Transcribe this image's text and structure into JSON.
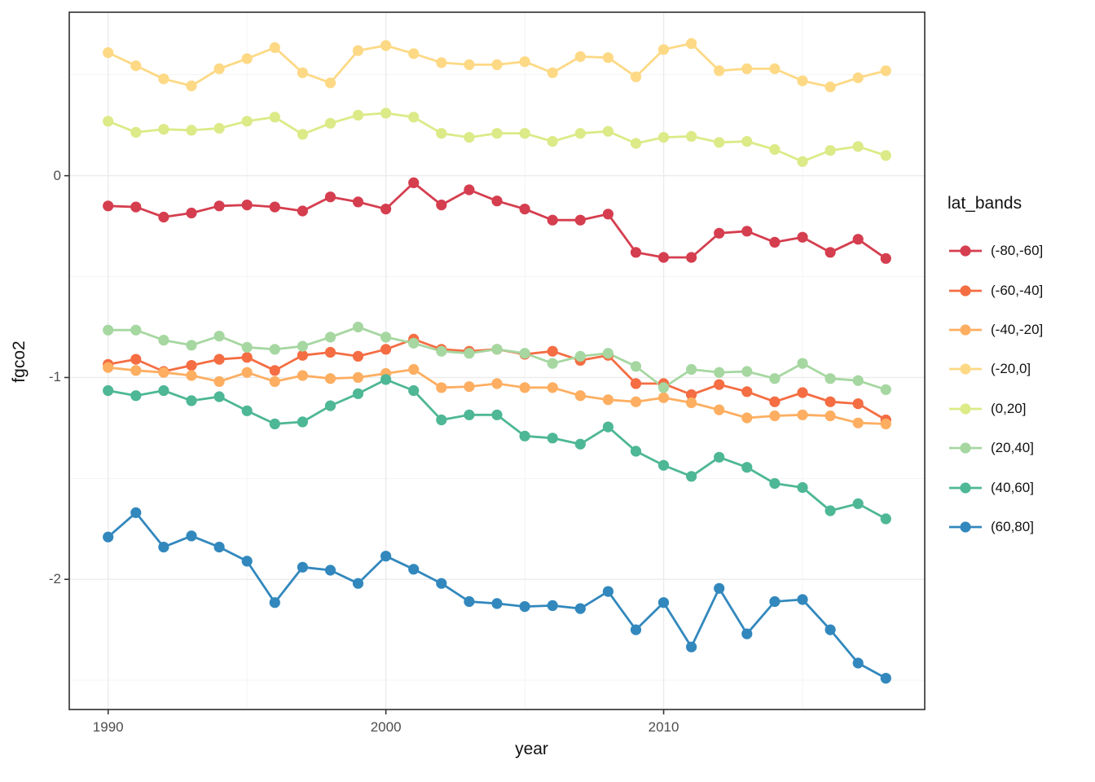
{
  "chart_data": {
    "type": "line",
    "title": "",
    "xlabel": "year",
    "ylabel": "fgco2",
    "legend_title": "lat_bands",
    "grid": true,
    "legend_position": "right",
    "xlim": [
      1988.6,
      2019.4
    ],
    "ylim": [
      -2.645,
      0.81
    ],
    "x_major_ticks": [
      {
        "value": 1990,
        "label": "1990"
      },
      {
        "value": 2000,
        "label": "2000"
      },
      {
        "value": 2010,
        "label": "2010"
      }
    ],
    "x_minor_ticks": [
      1995,
      2005,
      2015
    ],
    "y_major_ticks": [
      {
        "value": 0,
        "label": "0"
      },
      {
        "value": -1,
        "label": "-1"
      },
      {
        "value": -2,
        "label": "-2"
      }
    ],
    "y_minor_ticks": [
      0.5,
      -0.5,
      -1.5,
      -2.5
    ],
    "x": [
      1990,
      1991,
      1992,
      1993,
      1994,
      1995,
      1996,
      1997,
      1998,
      1999,
      2000,
      2001,
      2002,
      2003,
      2004,
      2005,
      2006,
      2007,
      2008,
      2009,
      2010,
      2011,
      2012,
      2013,
      2014,
      2015,
      2016,
      2017,
      2018
    ],
    "series": [
      {
        "name": "(-80,-60]",
        "color": "#d53e4f",
        "values": [
          -0.15,
          -0.155,
          -0.205,
          -0.185,
          -0.15,
          -0.145,
          -0.155,
          -0.175,
          -0.105,
          -0.13,
          -0.165,
          -0.035,
          -0.145,
          -0.07,
          -0.125,
          -0.165,
          -0.22,
          -0.22,
          -0.19,
          -0.38,
          -0.405,
          -0.405,
          -0.285,
          -0.275,
          -0.33,
          -0.305,
          -0.38,
          -0.315,
          -0.41
        ]
      },
      {
        "name": "(-60,-40]",
        "color": "#f46d43",
        "values": [
          -0.935,
          -0.91,
          -0.97,
          -0.94,
          -0.91,
          -0.9,
          -0.965,
          -0.89,
          -0.875,
          -0.895,
          -0.86,
          -0.81,
          -0.86,
          -0.87,
          -0.86,
          -0.885,
          -0.87,
          -0.915,
          -0.89,
          -1.03,
          -1.03,
          -1.085,
          -1.035,
          -1.07,
          -1.12,
          -1.075,
          -1.12,
          -1.13,
          -1.21
        ]
      },
      {
        "name": "(-40,-20]",
        "color": "#fdae61",
        "values": [
          -0.95,
          -0.965,
          -0.975,
          -0.99,
          -1.02,
          -0.975,
          -1.02,
          -0.99,
          -1.005,
          -1.0,
          -0.98,
          -0.96,
          -1.05,
          -1.045,
          -1.03,
          -1.05,
          -1.05,
          -1.09,
          -1.11,
          -1.12,
          -1.1,
          -1.125,
          -1.16,
          -1.2,
          -1.19,
          -1.185,
          -1.19,
          -1.225,
          -1.23
        ]
      },
      {
        "name": "(-20,0]",
        "color": "#fdd985",
        "values": [
          0.61,
          0.545,
          0.48,
          0.445,
          0.53,
          0.58,
          0.635,
          0.51,
          0.46,
          0.62,
          0.645,
          0.605,
          0.56,
          0.55,
          0.55,
          0.565,
          0.51,
          0.59,
          0.585,
          0.49,
          0.625,
          0.655,
          0.52,
          0.53,
          0.53,
          0.47,
          0.44,
          0.485,
          0.52
        ]
      },
      {
        "name": "(0,20]",
        "color": "#dcea87",
        "values": [
          0.27,
          0.215,
          0.23,
          0.225,
          0.235,
          0.27,
          0.29,
          0.205,
          0.26,
          0.3,
          0.31,
          0.29,
          0.21,
          0.19,
          0.21,
          0.21,
          0.17,
          0.21,
          0.22,
          0.16,
          0.19,
          0.195,
          0.165,
          0.17,
          0.13,
          0.07,
          0.125,
          0.145,
          0.1
        ]
      },
      {
        "name": "(20,40]",
        "color": "#a6d7a1",
        "values": [
          -0.765,
          -0.765,
          -0.815,
          -0.84,
          -0.795,
          -0.85,
          -0.86,
          -0.845,
          -0.8,
          -0.75,
          -0.8,
          -0.83,
          -0.87,
          -0.88,
          -0.86,
          -0.88,
          -0.93,
          -0.895,
          -0.88,
          -0.945,
          -1.05,
          -0.96,
          -0.975,
          -0.97,
          -1.005,
          -0.93,
          -1.005,
          -1.015,
          -1.06
        ]
      },
      {
        "name": "(40,60]",
        "color": "#4eb795",
        "values": [
          -1.065,
          -1.09,
          -1.065,
          -1.115,
          -1.095,
          -1.165,
          -1.23,
          -1.22,
          -1.14,
          -1.08,
          -1.01,
          -1.065,
          -1.21,
          -1.185,
          -1.185,
          -1.29,
          -1.3,
          -1.33,
          -1.245,
          -1.365,
          -1.435,
          -1.49,
          -1.395,
          -1.445,
          -1.525,
          -1.545,
          -1.66,
          -1.625,
          -1.7
        ]
      },
      {
        "name": "(60,80]",
        "color": "#3288bd",
        "values": [
          -1.79,
          -1.67,
          -1.84,
          -1.785,
          -1.84,
          -1.91,
          -2.115,
          -1.94,
          -1.955,
          -2.02,
          -1.885,
          -1.95,
          -2.02,
          -2.11,
          -2.12,
          -2.135,
          -2.13,
          -2.145,
          -2.06,
          -2.25,
          -2.115,
          -2.335,
          -2.045,
          -2.27,
          -2.11,
          -2.1,
          -2.25,
          -2.415,
          -2.49
        ]
      }
    ],
    "style": {
      "panel_background": "#ffffff",
      "panel_border_color": "#2f2f2f",
      "grid_major_color": "#ebebeb",
      "grid_minor_color": "#f4f4f4",
      "tick_color": "#333333",
      "tick_text_color": "#4d4d4d",
      "title_text_color": "#111111"
    }
  }
}
